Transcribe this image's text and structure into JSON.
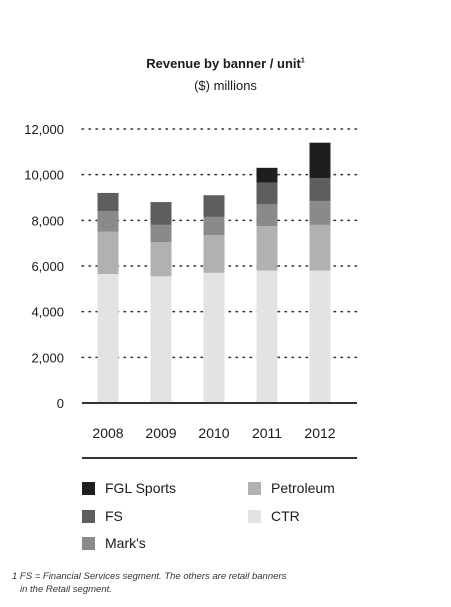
{
  "chart_data": {
    "type": "bar",
    "stacked": true,
    "title": "Revenue by banner / unit",
    "title_superscript": "1",
    "subtitle": "($) millions",
    "categories": [
      "2008",
      "2009",
      "2010",
      "2011",
      "2012"
    ],
    "yticks": [
      "0",
      "2,000",
      "4,000",
      "6,000",
      "8,000",
      "10,000",
      "12,000"
    ],
    "ylim": [
      0,
      12000
    ],
    "grid": "dotted horizontal",
    "series": [
      {
        "name": "CTR",
        "color": "#e3e3e3",
        "values": [
          5650,
          5550,
          5700,
          5800,
          5800
        ]
      },
      {
        "name": "Petroleum",
        "color": "#b1b1b1",
        "values": [
          1850,
          1500,
          1650,
          1950,
          2000
        ]
      },
      {
        "name": "Mark's",
        "color": "#8a8a8a",
        "values": [
          900,
          750,
          800,
          950,
          1050
        ]
      },
      {
        "name": "FS",
        "color": "#5e5e5e",
        "values": [
          800,
          1000,
          950,
          950,
          1000
        ]
      },
      {
        "name": "FGL Sports",
        "color": "#1e1e1e",
        "values": [
          0,
          0,
          0,
          650,
          1550
        ]
      }
    ]
  },
  "legend": [
    {
      "label": "FGL Sports",
      "color": "#1e1e1e"
    },
    {
      "label": "Petroleum",
      "color": "#b1b1b1"
    },
    {
      "label": "FS",
      "color": "#5e5e5e"
    },
    {
      "label": "CTR",
      "color": "#e3e3e3"
    },
    {
      "label": "Mark's",
      "color": "#8a8a8a"
    }
  ],
  "footnote": {
    "line1": "1 FS = Financial Services segment.  The others are retail banners",
    "line2": "in the Retail segment."
  }
}
